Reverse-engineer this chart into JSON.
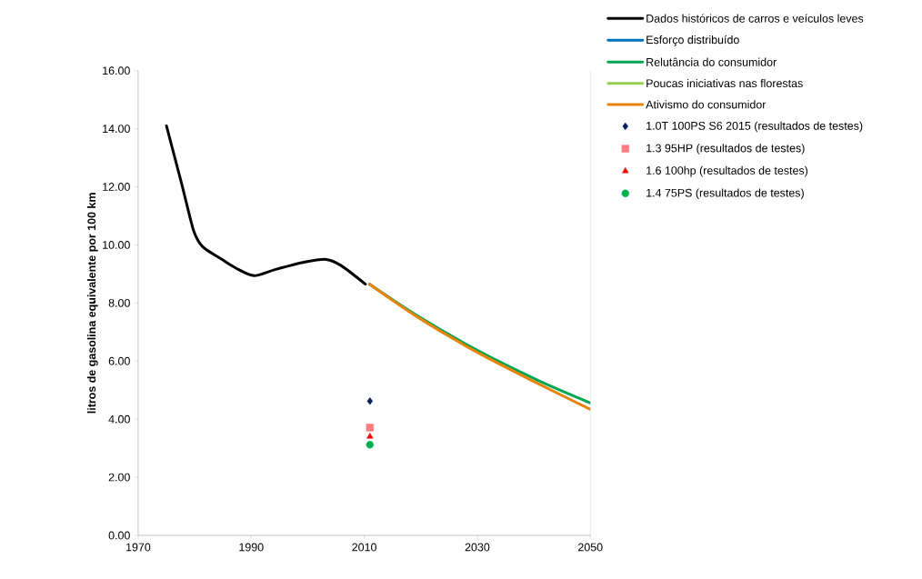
{
  "chart_data": {
    "type": "line",
    "ylabel": "litros de gasolina equivalente por 100 km",
    "xlim": [
      1970,
      2050
    ],
    "xticks": [
      1970,
      1990,
      2010,
      2030,
      2050
    ],
    "ylim": [
      0,
      16
    ],
    "yticks": [
      {
        "value": 0,
        "label": "0.00"
      },
      {
        "value": 2,
        "label": "2.00"
      },
      {
        "value": 4,
        "label": "4.00"
      },
      {
        "value": 6,
        "label": "6.00"
      },
      {
        "value": 8,
        "label": "8.00"
      },
      {
        "value": 10,
        "label": "10.00"
      },
      {
        "value": 12,
        "label": "12.00"
      },
      {
        "value": 14,
        "label": "14.00"
      },
      {
        "value": 16,
        "label": "16.00"
      }
    ],
    "grid": false,
    "legend": "right",
    "series": [
      {
        "name": "Dados históricos de carros e veículos leves",
        "color": "#000000",
        "x": [
          1975,
          1977.7,
          1979.8,
          1981.4,
          1984.6,
          1987.3,
          1990.5,
          1994.2,
          1999.5,
          2003.3,
          2005.9,
          2010.2
        ],
        "values": [
          14.1,
          12.1,
          10.5,
          9.94,
          9.53,
          9.2,
          8.94,
          9.15,
          9.41,
          9.5,
          9.29,
          8.65
        ]
      },
      {
        "name": "Esforço distribuído",
        "color": "#0070c0",
        "values": [
          null,
          null,
          null,
          null,
          null
        ]
      },
      {
        "name": "Relutância do consumidor",
        "color": "#00a651",
        "x": [
          2010.9,
          2019.3,
          2030,
          2040.7,
          2050
        ],
        "values": [
          8.65,
          7.57,
          6.37,
          5.34,
          4.56
        ]
      },
      {
        "name": "Poucas iniciativas nas florestas",
        "color": "#92d050",
        "values": [
          null,
          null,
          null,
          null,
          null
        ]
      },
      {
        "name": "Ativismo do consumidor",
        "color": "#e8840e",
        "x": [
          2010.9,
          2019.3,
          2030,
          2040.7,
          2050
        ],
        "values": [
          8.65,
          7.53,
          6.3,
          5.23,
          4.34
        ]
      },
      {
        "name": "1.0T 100PS S6 2015 (resultados de testes)",
        "type": "scatter",
        "marker": "diamond",
        "color": "#002060",
        "x": [
          2011
        ],
        "values": [
          4.62
        ]
      },
      {
        "name": "1.3 95HP (resultados de testes)",
        "type": "scatter",
        "marker": "square",
        "color": "#ff7c80",
        "x": [
          2011
        ],
        "values": [
          3.71
        ]
      },
      {
        "name": "1.6 100hp (resultados de testes)",
        "type": "scatter",
        "marker": "triangle",
        "color": "#ff0000",
        "x": [
          2011
        ],
        "values": [
          3.4
        ]
      },
      {
        "name": "1.4 75PS (resultados de testes)",
        "type": "scatter",
        "marker": "circle",
        "color": "#00b050",
        "x": [
          2011
        ],
        "values": [
          3.12
        ]
      }
    ]
  }
}
